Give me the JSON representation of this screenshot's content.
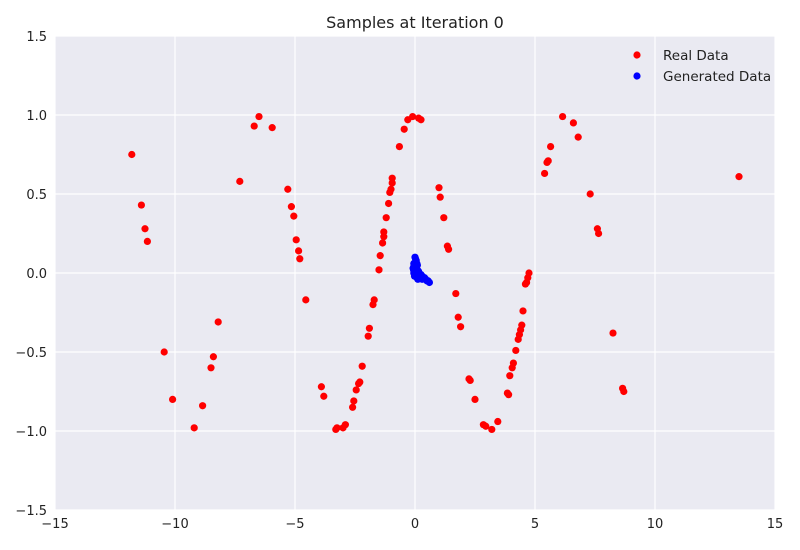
{
  "chart_data": {
    "type": "scatter",
    "title": "Samples at Iteration 0",
    "xlabel": "",
    "ylabel": "",
    "xlim": [
      -15,
      15
    ],
    "ylim": [
      -1.5,
      1.5
    ],
    "x_ticks": [
      -15,
      -10,
      -5,
      0,
      5,
      10,
      15
    ],
    "x_tick_labels": [
      "−15",
      "−10",
      "−5",
      "0",
      "5",
      "10",
      "15"
    ],
    "y_ticks": [
      -1.5,
      -1.0,
      -0.5,
      0.0,
      0.5,
      1.0,
      1.5
    ],
    "y_tick_labels": [
      "−1.5",
      "−1.0",
      "−0.5",
      "0.0",
      "0.5",
      "1.0",
      "1.5"
    ],
    "grid": true,
    "legend_position": "top-right",
    "series": [
      {
        "name": "Real Data",
        "color": "#ff0000",
        "points": [
          [
            -11.8,
            0.75
          ],
          [
            -11.4,
            0.43
          ],
          [
            -11.25,
            0.28
          ],
          [
            -11.15,
            0.2
          ],
          [
            -10.45,
            -0.5
          ],
          [
            -10.1,
            -0.8
          ],
          [
            -9.2,
            -0.98
          ],
          [
            -8.85,
            -0.84
          ],
          [
            -8.5,
            -0.6
          ],
          [
            -8.4,
            -0.53
          ],
          [
            -8.2,
            -0.31
          ],
          [
            -7.3,
            0.58
          ],
          [
            -6.7,
            0.93
          ],
          [
            -6.5,
            0.99
          ],
          [
            -5.95,
            0.92
          ],
          [
            -5.3,
            0.53
          ],
          [
            -5.15,
            0.42
          ],
          [
            -5.05,
            0.36
          ],
          [
            -4.95,
            0.21
          ],
          [
            -4.85,
            0.14
          ],
          [
            -4.8,
            0.09
          ],
          [
            -4.55,
            -0.17
          ],
          [
            -3.9,
            -0.72
          ],
          [
            -3.8,
            -0.78
          ],
          [
            -3.3,
            -0.99
          ],
          [
            -3.25,
            -0.98
          ],
          [
            -3.0,
            -0.98
          ],
          [
            -2.9,
            -0.96
          ],
          [
            -2.6,
            -0.85
          ],
          [
            -2.55,
            -0.81
          ],
          [
            -2.45,
            -0.74
          ],
          [
            -2.35,
            -0.7
          ],
          [
            -2.3,
            -0.69
          ],
          [
            -2.2,
            -0.59
          ],
          [
            -1.95,
            -0.4
          ],
          [
            -1.9,
            -0.35
          ],
          [
            -1.75,
            -0.2
          ],
          [
            -1.7,
            -0.17
          ],
          [
            -1.5,
            0.02
          ],
          [
            -1.45,
            0.11
          ],
          [
            -1.35,
            0.19
          ],
          [
            -1.3,
            0.23
          ],
          [
            -1.3,
            0.26
          ],
          [
            -1.2,
            0.35
          ],
          [
            -1.1,
            0.44
          ],
          [
            -1.05,
            0.51
          ],
          [
            -1.0,
            0.53
          ],
          [
            -0.95,
            0.57
          ],
          [
            -0.95,
            0.6
          ],
          [
            -0.65,
            0.8
          ],
          [
            -0.45,
            0.91
          ],
          [
            -0.3,
            0.97
          ],
          [
            -0.1,
            0.99
          ],
          [
            0.15,
            0.98
          ],
          [
            0.25,
            0.97
          ],
          [
            1.0,
            0.54
          ],
          [
            1.05,
            0.48
          ],
          [
            1.2,
            0.35
          ],
          [
            1.35,
            0.17
          ],
          [
            1.4,
            0.15
          ],
          [
            1.7,
            -0.13
          ],
          [
            1.8,
            -0.28
          ],
          [
            1.9,
            -0.34
          ],
          [
            2.25,
            -0.67
          ],
          [
            2.3,
            -0.68
          ],
          [
            2.5,
            -0.8
          ],
          [
            2.85,
            -0.96
          ],
          [
            2.95,
            -0.97
          ],
          [
            3.2,
            -0.99
          ],
          [
            3.45,
            -0.94
          ],
          [
            3.85,
            -0.76
          ],
          [
            3.9,
            -0.77
          ],
          [
            3.95,
            -0.65
          ],
          [
            4.05,
            -0.6
          ],
          [
            4.1,
            -0.57
          ],
          [
            4.2,
            -0.49
          ],
          [
            4.3,
            -0.42
          ],
          [
            4.35,
            -0.39
          ],
          [
            4.4,
            -0.36
          ],
          [
            4.45,
            -0.33
          ],
          [
            4.5,
            -0.24
          ],
          [
            4.6,
            -0.07
          ],
          [
            4.65,
            -0.06
          ],
          [
            4.7,
            -0.03
          ],
          [
            4.75,
            0.0
          ],
          [
            5.4,
            0.63
          ],
          [
            5.5,
            0.7
          ],
          [
            5.55,
            0.71
          ],
          [
            5.65,
            0.8
          ],
          [
            6.15,
            0.99
          ],
          [
            6.6,
            0.95
          ],
          [
            6.8,
            0.86
          ],
          [
            7.3,
            0.5
          ],
          [
            7.6,
            0.28
          ],
          [
            7.65,
            0.25
          ],
          [
            8.25,
            -0.38
          ],
          [
            8.65,
            -0.73
          ],
          [
            8.7,
            -0.75
          ],
          [
            13.5,
            0.61
          ]
        ]
      },
      {
        "name": "Generated Data",
        "color": "#0000ff",
        "points": [
          [
            0.0,
            0.1
          ],
          [
            0.02,
            0.09
          ],
          [
            0.05,
            0.08
          ],
          [
            0.08,
            0.06
          ],
          [
            0.1,
            0.05
          ],
          [
            -0.05,
            0.06
          ],
          [
            -0.05,
            0.04
          ],
          [
            -0.08,
            0.03
          ],
          [
            -0.06,
            0.02
          ],
          [
            0.0,
            0.03
          ],
          [
            0.05,
            0.03
          ],
          [
            0.1,
            0.02
          ],
          [
            -0.05,
            0.0
          ],
          [
            0.0,
            0.0
          ],
          [
            0.05,
            0.0
          ],
          [
            0.1,
            0.0
          ],
          [
            -0.02,
            -0.02
          ],
          [
            0.03,
            -0.02
          ],
          [
            0.08,
            -0.03
          ],
          [
            0.15,
            0.01
          ],
          [
            0.2,
            -0.01
          ],
          [
            0.25,
            -0.01
          ],
          [
            0.3,
            -0.02
          ],
          [
            0.35,
            -0.03
          ],
          [
            0.4,
            -0.03
          ],
          [
            0.45,
            -0.04
          ],
          [
            0.5,
            -0.05
          ],
          [
            0.55,
            -0.05
          ],
          [
            0.6,
            -0.06
          ],
          [
            0.12,
            -0.04
          ],
          [
            0.2,
            -0.03
          ],
          [
            0.3,
            -0.04
          ]
        ]
      }
    ]
  }
}
